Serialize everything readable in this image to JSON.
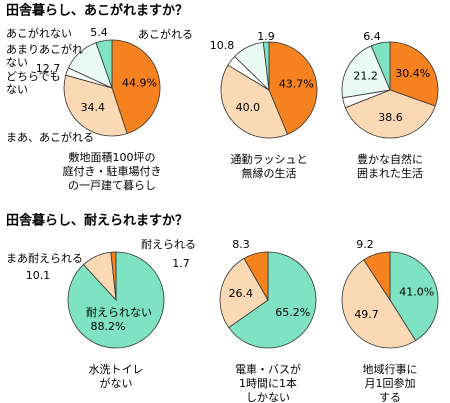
{
  "chart_data": [
    {
      "type": "pie",
      "heading": "田舎暮らし、あこがれますか？",
      "title": [
        "敷地面積100坪の",
        "庭付き・駐車場付き",
        "の一戸建て暮らし"
      ],
      "categories": [
        "あこがれる",
        "まあ、あこがれる",
        "どちらでもない",
        "あまりあこがれない",
        "あこがれない"
      ],
      "values": [
        44.9,
        34.4,
        2.6,
        12.7,
        5.4
      ],
      "value_labels": [
        "44.9%",
        "34.4",
        null,
        "12.7",
        "5.4"
      ],
      "colors": [
        "#f5821f",
        "#fbd9b4",
        "#ffffff",
        "#eafaf5",
        "#7fe2c2"
      ]
    },
    {
      "type": "pie",
      "title": [
        "通勤ラッシュと",
        "無縁の生活"
      ],
      "values": [
        43.7,
        40.0,
        3.6,
        10.8,
        1.9
      ],
      "value_labels": [
        "43.7%",
        "40.0",
        null,
        "10.8",
        "1.9"
      ],
      "colors": [
        "#f5821f",
        "#fbd9b4",
        "#ffffff",
        "#eafaf5",
        "#7fe2c2"
      ]
    },
    {
      "type": "pie",
      "title": [
        "豊かな自然に",
        "囲まれた生活"
      ],
      "values": [
        30.4,
        38.6,
        3.4,
        21.2,
        6.4
      ],
      "value_labels": [
        "30.4%",
        "38.6",
        null,
        "21.2",
        "6.4"
      ],
      "colors": [
        "#f5821f",
        "#fbd9b4",
        "#ffffff",
        "#eafaf5",
        "#7fe2c2"
      ]
    },
    {
      "type": "pie",
      "heading": "田舎暮らし、耐えられますか？",
      "title": [
        "水洗トイレ",
        "がない"
      ],
      "categories": [
        "耐えられない",
        "まあ耐えられる",
        "耐えられる"
      ],
      "values": [
        88.2,
        10.1,
        1.7
      ],
      "value_labels": [
        "88.2%",
        "10.1",
        "1.7"
      ],
      "colors": [
        "#7fe2c2",
        "#fbd9b4",
        "#f5821f"
      ]
    },
    {
      "type": "pie",
      "title": [
        "電車・バスが",
        "1時間に1本",
        "しかない"
      ],
      "values": [
        65.2,
        26.4,
        8.3
      ],
      "value_labels": [
        "65.2%",
        "26.4",
        "8.3"
      ],
      "colors": [
        "#7fe2c2",
        "#fbd9b4",
        "#f5821f"
      ]
    },
    {
      "type": "pie",
      "title": [
        "地域行事に",
        "月1回参加",
        "する"
      ],
      "values": [
        41.0,
        49.7,
        9.2
      ],
      "value_labels": [
        "41.0%",
        "49.7",
        "9.2"
      ],
      "colors": [
        "#7fe2c2",
        "#fbd9b4",
        "#f5821f"
      ]
    }
  ]
}
